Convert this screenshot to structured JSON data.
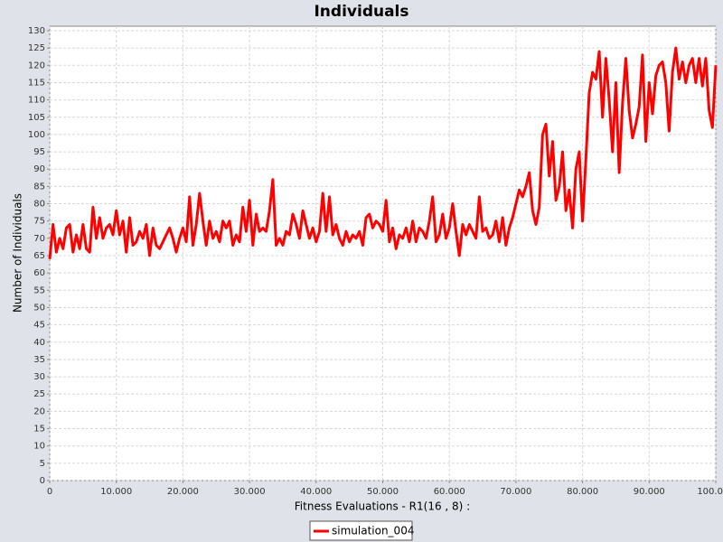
{
  "chart_data": {
    "type": "line",
    "title": "Individuals",
    "x_label": "Fitness Evaluations - R1(16 , 8) :",
    "y_label": "Number of Individuals",
    "x": [
      0,
      500,
      1000,
      1500,
      2000,
      2500,
      3000,
      3500,
      4000,
      4500,
      5000,
      5500,
      6000,
      6500,
      7000,
      7500,
      8000,
      8500,
      9000,
      9500,
      10000,
      10500,
      11000,
      11500,
      12000,
      12500,
      13000,
      13500,
      14000,
      14500,
      15000,
      15500,
      16000,
      16500,
      17000,
      17500,
      18000,
      18500,
      19000,
      19500,
      20000,
      20500,
      21000,
      21500,
      22000,
      22500,
      23000,
      23500,
      24000,
      24500,
      25000,
      25500,
      26000,
      26500,
      27000,
      27500,
      28000,
      28500,
      29000,
      29500,
      30000,
      30500,
      31000,
      31500,
      32000,
      32500,
      33000,
      33500,
      34000,
      34500,
      35000,
      35500,
      36000,
      36500,
      37000,
      37500,
      38000,
      38500,
      39000,
      39500,
      40000,
      40500,
      41000,
      41500,
      42000,
      42500,
      43000,
      43500,
      44000,
      44500,
      45000,
      45500,
      46000,
      46500,
      47000,
      47500,
      48000,
      48500,
      49000,
      49500,
      50000,
      50500,
      51000,
      51500,
      52000,
      52500,
      53000,
      53500,
      54000,
      54500,
      55000,
      55500,
      56000,
      56500,
      57000,
      57500,
      58000,
      58500,
      59000,
      59500,
      60000,
      60500,
      61000,
      61500,
      62000,
      62500,
      63000,
      63500,
      64000,
      64500,
      65000,
      65500,
      66000,
      66500,
      67000,
      67500,
      68000,
      68500,
      69000,
      69500,
      70000,
      70500,
      71000,
      71500,
      72000,
      72500,
      73000,
      73500,
      74000,
      74500,
      75000,
      75500,
      76000,
      76500,
      77000,
      77500,
      78000,
      78500,
      79000,
      79500,
      80000,
      80500,
      81000,
      81500,
      82000,
      82500,
      83000,
      83500,
      84000,
      84500,
      85000,
      85500,
      86000,
      86500,
      87000,
      87500,
      88000,
      88500,
      89000,
      89500,
      90000,
      90500,
      91000,
      91500,
      92000,
      92500,
      93000,
      93500,
      94000,
      94500,
      95000,
      95500,
      96000,
      96500,
      97000,
      97500,
      98000,
      98500,
      99000,
      99500,
      100000
    ],
    "series": [
      {
        "name": "simulation_004",
        "color": "#ff0000",
        "values": [
          64,
          74,
          66,
          70,
          67,
          73,
          74,
          66,
          71,
          67,
          74,
          67,
          66,
          79,
          70,
          76,
          70,
          73,
          74,
          71,
          78,
          71,
          75,
          66,
          76,
          68,
          69,
          72,
          70,
          74,
          65,
          73,
          68,
          67,
          69,
          71,
          73,
          70,
          66,
          70,
          73,
          69,
          82,
          68,
          74,
          83,
          75,
          68,
          75,
          70,
          72,
          69,
          75,
          73,
          75,
          68,
          71,
          69,
          79,
          72,
          81,
          68,
          77,
          72,
          73,
          72,
          78,
          87,
          68,
          70,
          68,
          72,
          71,
          77,
          74,
          70,
          78,
          74,
          70,
          73,
          69,
          72,
          83,
          72,
          82,
          71,
          74,
          70,
          68,
          72,
          69,
          71,
          70,
          72,
          68,
          76,
          77,
          73,
          75,
          74,
          72,
          81,
          69,
          73,
          67,
          71,
          70,
          73,
          69,
          75,
          69,
          73,
          72,
          70,
          75,
          82,
          69,
          71,
          77,
          70,
          73,
          80,
          72,
          65,
          74,
          71,
          74,
          72,
          70,
          82,
          72,
          73,
          70,
          71,
          75,
          69,
          76,
          68,
          73,
          76,
          80,
          84,
          82,
          85,
          89,
          78,
          74,
          79,
          100,
          103,
          88,
          98,
          81,
          85,
          95,
          78,
          84,
          73,
          90,
          95,
          75,
          93,
          112,
          118,
          116,
          124,
          105,
          122,
          110,
          95,
          115,
          89,
          109,
          122,
          107,
          99,
          103,
          108,
          123,
          98,
          115,
          106,
          117,
          120,
          121,
          115,
          101,
          118,
          125,
          116,
          121,
          115,
          120,
          122,
          115,
          122,
          114,
          122,
          107,
          102,
          120
        ]
      }
    ],
    "xlim": [
      0,
      100000
    ],
    "ylim": [
      0,
      130
    ],
    "xticks": [
      0,
      {
        "value": 10000,
        "label": "10.000"
      },
      {
        "value": 20000,
        "label": "20.000"
      },
      {
        "value": 30000,
        "label": "30.000"
      },
      {
        "value": 40000,
        "label": "40.000"
      },
      {
        "value": 50000,
        "label": "50.000"
      },
      {
        "value": 60000,
        "label": "60.000"
      },
      {
        "value": 70000,
        "label": "70.000"
      },
      {
        "value": 80000,
        "label": "80.000"
      },
      {
        "value": 90000,
        "label": "90.000"
      },
      {
        "value": 100000,
        "label": "100.000"
      }
    ],
    "yticks": [
      0,
      5,
      10,
      15,
      20,
      25,
      30,
      35,
      40,
      45,
      50,
      55,
      60,
      65,
      70,
      75,
      80,
      85,
      90,
      95,
      100,
      105,
      110,
      115,
      120,
      125,
      130
    ],
    "grid": true
  }
}
